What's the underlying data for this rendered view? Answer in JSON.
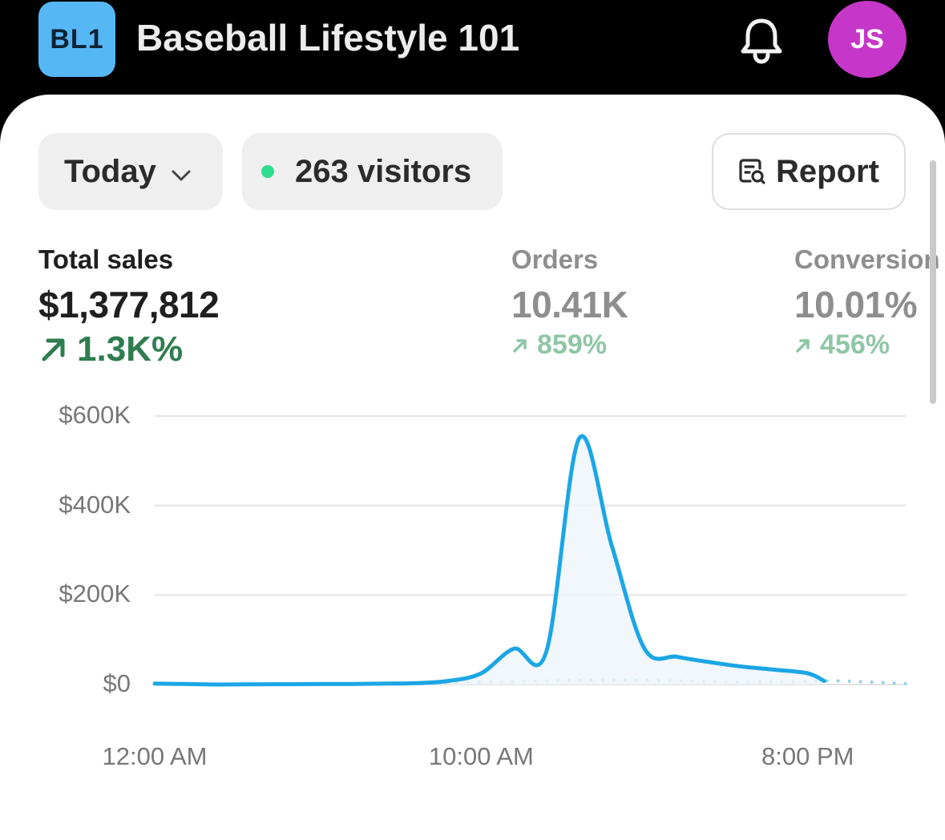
{
  "header": {
    "logo_text": "BL1",
    "store_name": "Baseball Lifestyle 101",
    "bell_icon": "bell-icon",
    "avatar_initials": "JS",
    "colors": {
      "logo_bg": "#56b7f5",
      "avatar_bg": "#c637c9"
    }
  },
  "filters": {
    "date_range": "Today",
    "visitors": "263 visitors",
    "live_dot_color": "#2ddc8c",
    "report_label": "Report",
    "report_icon": "report-search-icon"
  },
  "metrics": [
    {
      "label": "Total sales",
      "value": "$1,377,812",
      "change": "1.3K%"
    },
    {
      "label": "Orders",
      "value": "10.41K",
      "change": "859%"
    },
    {
      "label": "Conversion",
      "value": "10.01%",
      "change": "456%"
    }
  ],
  "chart_data": {
    "type": "line",
    "x_ticks": [
      "12:00 AM",
      "10:00 AM",
      "8:00 PM"
    ],
    "y_ticks": [
      "$600K",
      "$400K",
      "$200K",
      "$0"
    ],
    "ylim": [
      0,
      600000
    ],
    "xlim": [
      0,
      23
    ],
    "x_unit": "hour of day",
    "series": [
      {
        "name": "",
        "color": "#1ba6e6",
        "style": "solid",
        "points": [
          [
            0,
            2000
          ],
          [
            1,
            1000
          ],
          [
            2,
            0
          ],
          [
            3,
            500
          ],
          [
            4,
            800
          ],
          [
            5,
            1000
          ],
          [
            6,
            1000
          ],
          [
            7,
            2000
          ],
          [
            8,
            3000
          ],
          [
            9,
            8000
          ],
          [
            10,
            25000
          ],
          [
            11,
            80000
          ],
          [
            12,
            75000
          ],
          [
            13,
            550000
          ],
          [
            14,
            310000
          ],
          [
            15,
            80000
          ],
          [
            16,
            62000
          ],
          [
            17,
            50000
          ],
          [
            18,
            40000
          ],
          [
            19,
            33000
          ],
          [
            20,
            25000
          ],
          [
            20.5,
            8000
          ]
        ]
      },
      {
        "name": "",
        "color": "#8fd0ee",
        "style": "dotted",
        "points": [
          [
            6.5,
            1000
          ],
          [
            8,
            2000
          ],
          [
            10,
            5000
          ],
          [
            12,
            8000
          ],
          [
            14,
            10000
          ],
          [
            16,
            8000
          ],
          [
            18,
            6000
          ],
          [
            20,
            7000
          ],
          [
            21,
            8000
          ],
          [
            23,
            2000
          ]
        ]
      }
    ]
  }
}
